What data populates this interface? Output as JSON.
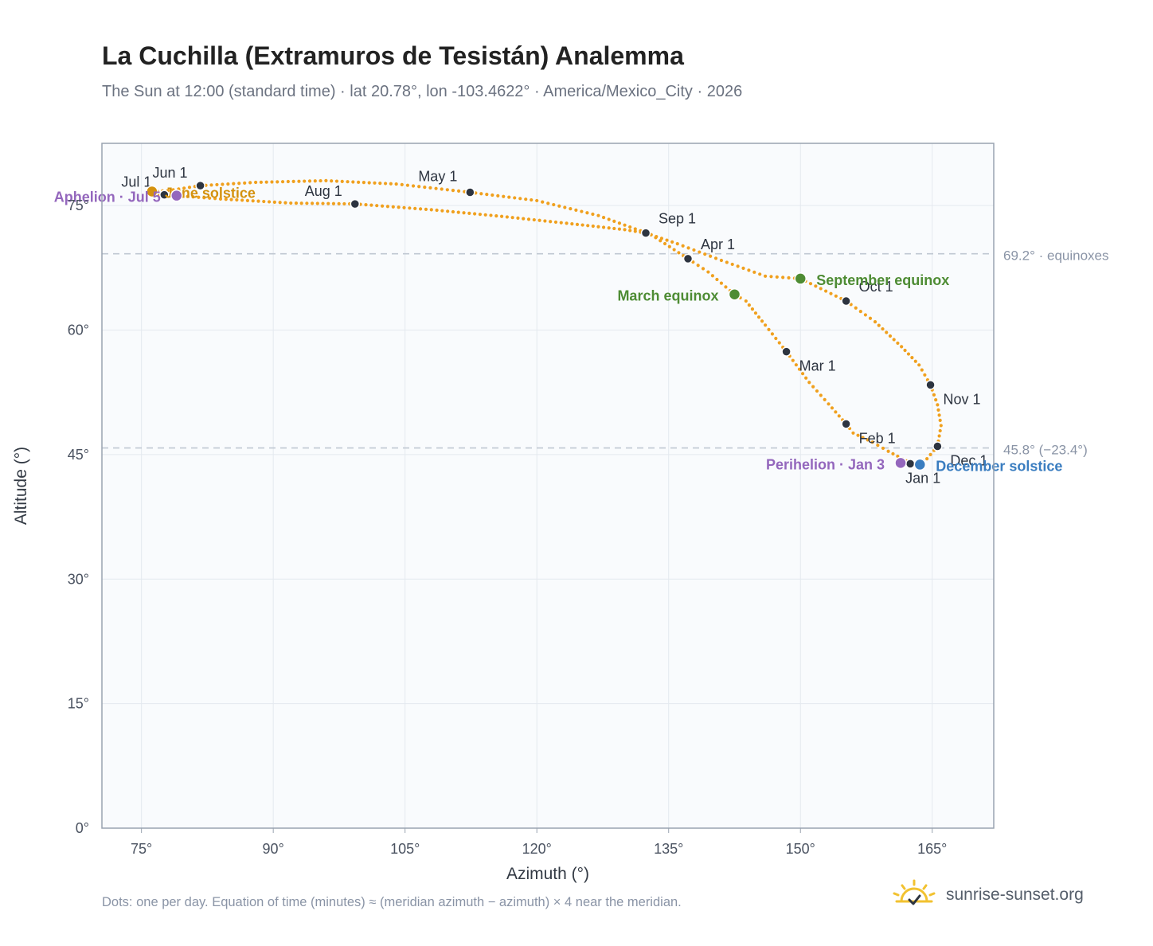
{
  "title": "La Cuchilla (Extramuros de Tesistán) Analemma",
  "subtitle": "The Sun at 12:00 (standard time) · lat 20.78°, lon -103.4622° · America/Mexico_City · 2026",
  "footnote": "Dots: one per day. Equation of time (minutes) ≈ (meridian azimuth − azimuth) × 4 near the meridian.",
  "brand": {
    "name": "sunrise-sunset.org",
    "icon": "sun-logo-icon"
  },
  "colors": {
    "curve": "#f0a01e",
    "month_dot": "#2d3440",
    "equinox": "#4e8c34",
    "solstice_june": "#d4920f",
    "solstice_december": "#3a7dc0",
    "apsis": "#9467bd",
    "reference_line": "#c0c8d2",
    "plot_bg": "#f9fbfd",
    "grid": "#e4e9ef",
    "frame": "#99a3b0"
  },
  "chart_data": {
    "type": "scatter",
    "xlabel": "Azimuth (°)",
    "ylabel": "Altitude (°)",
    "xlim": [
      70.5,
      172
    ],
    "ylim": [
      0,
      82.5
    ],
    "xticks": [
      75,
      90,
      105,
      120,
      135,
      150,
      165
    ],
    "xtick_labels": [
      "75°",
      "90°",
      "105°",
      "120°",
      "135°",
      "150°",
      "165°"
    ],
    "yticks": [
      0,
      15,
      30,
      45,
      60,
      75
    ],
    "ytick_labels": [
      "0°",
      "15°",
      "30°",
      "45°",
      "60°",
      "75°"
    ],
    "grid": true,
    "series": [
      {
        "points": [
          [
            163.0,
            43.7
          ],
          [
            161.6,
            44.5
          ],
          [
            160.0,
            45.4
          ],
          [
            158.2,
            46.5
          ],
          [
            156.0,
            47.6
          ],
          [
            155.2,
            48.7
          ],
          [
            153.2,
            51.1
          ],
          [
            151.0,
            53.7
          ],
          [
            148.4,
            57.4
          ],
          [
            146.0,
            60.6
          ],
          [
            143.8,
            63.5
          ],
          [
            142.5,
            64.3
          ],
          [
            139.5,
            67.0
          ],
          [
            137.2,
            68.6
          ],
          [
            133.0,
            71.5
          ],
          [
            127.0,
            73.8
          ],
          [
            120.0,
            75.6
          ],
          [
            112.4,
            76.6
          ],
          [
            104.0,
            77.6
          ],
          [
            96.0,
            78.0
          ],
          [
            88.0,
            77.8
          ],
          [
            81.7,
            77.4
          ],
          [
            78.0,
            76.8
          ],
          [
            76.2,
            76.7
          ],
          [
            75.8,
            76.6
          ],
          [
            77.0,
            76.2
          ],
          [
            79.0,
            76.2
          ],
          [
            84.0,
            75.8
          ],
          [
            92.0,
            75.3
          ],
          [
            99.3,
            75.2
          ],
          [
            108.0,
            74.5
          ],
          [
            116.0,
            73.7
          ],
          [
            124.0,
            72.8
          ],
          [
            130.0,
            72.1
          ],
          [
            132.4,
            71.7
          ],
          [
            136.0,
            70.4
          ],
          [
            141.0,
            68.4
          ],
          [
            146.0,
            66.5
          ],
          [
            150.0,
            66.2
          ],
          [
            155.2,
            63.5
          ],
          [
            158.5,
            61.0
          ],
          [
            161.5,
            58.0
          ],
          [
            163.5,
            55.8
          ],
          [
            164.8,
            53.4
          ],
          [
            165.6,
            51.0
          ],
          [
            166.0,
            48.5
          ],
          [
            165.6,
            46.0
          ],
          [
            164.4,
            44.5
          ],
          [
            163.0,
            43.7
          ]
        ]
      }
    ],
    "month_markers": [
      {
        "label": "Jan 1",
        "x": 162.5,
        "y": 43.9
      },
      {
        "label": "Feb 1",
        "x": 155.2,
        "y": 48.7
      },
      {
        "label": "Mar 1",
        "x": 148.4,
        "y": 57.4
      },
      {
        "label": "Apr 1",
        "x": 137.2,
        "y": 68.6
      },
      {
        "label": "May 1",
        "x": 112.4,
        "y": 76.6
      },
      {
        "label": "Jun 1",
        "x": 81.7,
        "y": 77.4
      },
      {
        "label": "Jul 1",
        "x": 77.6,
        "y": 76.3
      },
      {
        "label": "Aug 1",
        "x": 99.3,
        "y": 75.2
      },
      {
        "label": "Sep 1",
        "x": 132.4,
        "y": 71.7
      },
      {
        "label": "Oct 1",
        "x": 155.2,
        "y": 63.5
      },
      {
        "label": "Nov 1",
        "x": 164.8,
        "y": 53.4
      },
      {
        "label": "Dec 1",
        "x": 165.6,
        "y": 46.0
      }
    ],
    "events": [
      {
        "label": "March equinox",
        "x": 142.5,
        "y": 64.3,
        "kind": "equinox"
      },
      {
        "label": "September equinox",
        "x": 150.0,
        "y": 66.2,
        "kind": "equinox"
      },
      {
        "label": "June solstice",
        "x": 76.2,
        "y": 76.7,
        "kind": "solstice_june"
      },
      {
        "label": "December solstice",
        "x": 163.6,
        "y": 43.8,
        "kind": "solstice_december"
      },
      {
        "label": "Perihelion · Jan 3",
        "x": 161.4,
        "y": 44.0,
        "kind": "apsis"
      },
      {
        "label": "Aphelion · Jul 5",
        "x": 79.0,
        "y": 76.2,
        "kind": "apsis"
      }
    ],
    "reference_lines": [
      {
        "y": 69.2,
        "label": "69.2° · equinoxes"
      },
      {
        "y": 45.8,
        "label": "45.8° (−23.4°)"
      }
    ]
  }
}
